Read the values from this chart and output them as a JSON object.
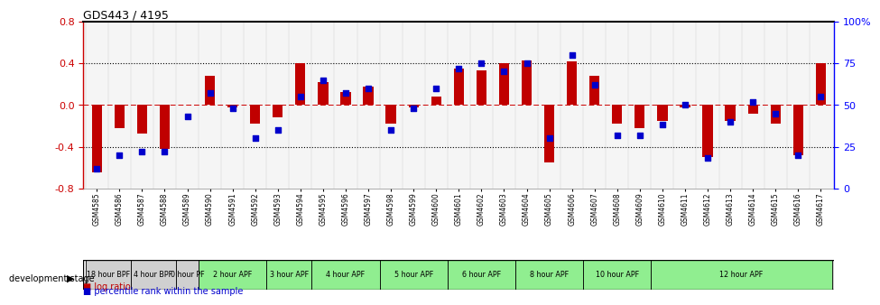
{
  "title": "GDS443 / 4195",
  "samples": [
    "GSM4585",
    "GSM4586",
    "GSM4587",
    "GSM4588",
    "GSM4589",
    "GSM4590",
    "GSM4591",
    "GSM4592",
    "GSM4593",
    "GSM4594",
    "GSM4595",
    "GSM4596",
    "GSM4597",
    "GSM4598",
    "GSM4599",
    "GSM4600",
    "GSM4601",
    "GSM4602",
    "GSM4603",
    "GSM4604",
    "GSM4605",
    "GSM4606",
    "GSM4607",
    "GSM4608",
    "GSM4609",
    "GSM4610",
    "GSM4611",
    "GSM4612",
    "GSM4613",
    "GSM4614",
    "GSM4615",
    "GSM4616",
    "GSM4617"
  ],
  "log_ratio": [
    -0.65,
    -0.22,
    -0.27,
    -0.42,
    0.0,
    0.28,
    -0.02,
    -0.18,
    -0.12,
    0.4,
    0.22,
    0.12,
    0.18,
    -0.18,
    -0.02,
    0.08,
    0.35,
    0.33,
    0.4,
    0.43,
    -0.55,
    0.42,
    0.28,
    -0.18,
    -0.22,
    -0.15,
    -0.02,
    -0.5,
    -0.15,
    -0.08,
    -0.18,
    -0.48,
    0.4
  ],
  "percentile": [
    12,
    20,
    22,
    22,
    43,
    57,
    48,
    30,
    35,
    55,
    65,
    57,
    60,
    35,
    48,
    60,
    72,
    75,
    70,
    75,
    30,
    80,
    62,
    32,
    32,
    38,
    50,
    18,
    40,
    52,
    45,
    20,
    55
  ],
  "bar_color": "#c00000",
  "dot_color": "#0000cc",
  "stages": [
    {
      "label": "18 hour BPF",
      "start": 0,
      "end": 2,
      "color": "#d0d0d0"
    },
    {
      "label": "4 hour BPF",
      "start": 2,
      "end": 4,
      "color": "#d0d0d0"
    },
    {
      "label": "0 hour PF",
      "start": 4,
      "end": 5,
      "color": "#d0d0d0"
    },
    {
      "label": "2 hour APF",
      "start": 5,
      "end": 8,
      "color": "#90ee90"
    },
    {
      "label": "3 hour APF",
      "start": 8,
      "end": 10,
      "color": "#90ee90"
    },
    {
      "label": "4 hour APF",
      "start": 10,
      "end": 13,
      "color": "#90ee90"
    },
    {
      "label": "5 hour APF",
      "start": 13,
      "end": 16,
      "color": "#90ee90"
    },
    {
      "label": "6 hour APF",
      "start": 16,
      "end": 19,
      "color": "#90ee90"
    },
    {
      "label": "8 hour APF",
      "start": 19,
      "end": 22,
      "color": "#90ee90"
    },
    {
      "label": "10 hour APF",
      "start": 22,
      "end": 25,
      "color": "#90ee90"
    },
    {
      "label": "12 hour APF",
      "start": 25,
      "end": 33,
      "color": "#90ee90"
    }
  ],
  "ylim": [
    -0.8,
    0.8
  ],
  "yticks": [
    -0.8,
    -0.4,
    0.0,
    0.4,
    0.8
  ],
  "right_yticks": [
    0,
    25,
    50,
    75,
    100
  ],
  "right_ylabels": [
    "0",
    "25",
    "50",
    "75",
    "100%"
  ],
  "dotted_lines": [
    0.4,
    -0.4
  ],
  "zero_line_color": "#cc0000",
  "bg_color": "#f5f5f5"
}
